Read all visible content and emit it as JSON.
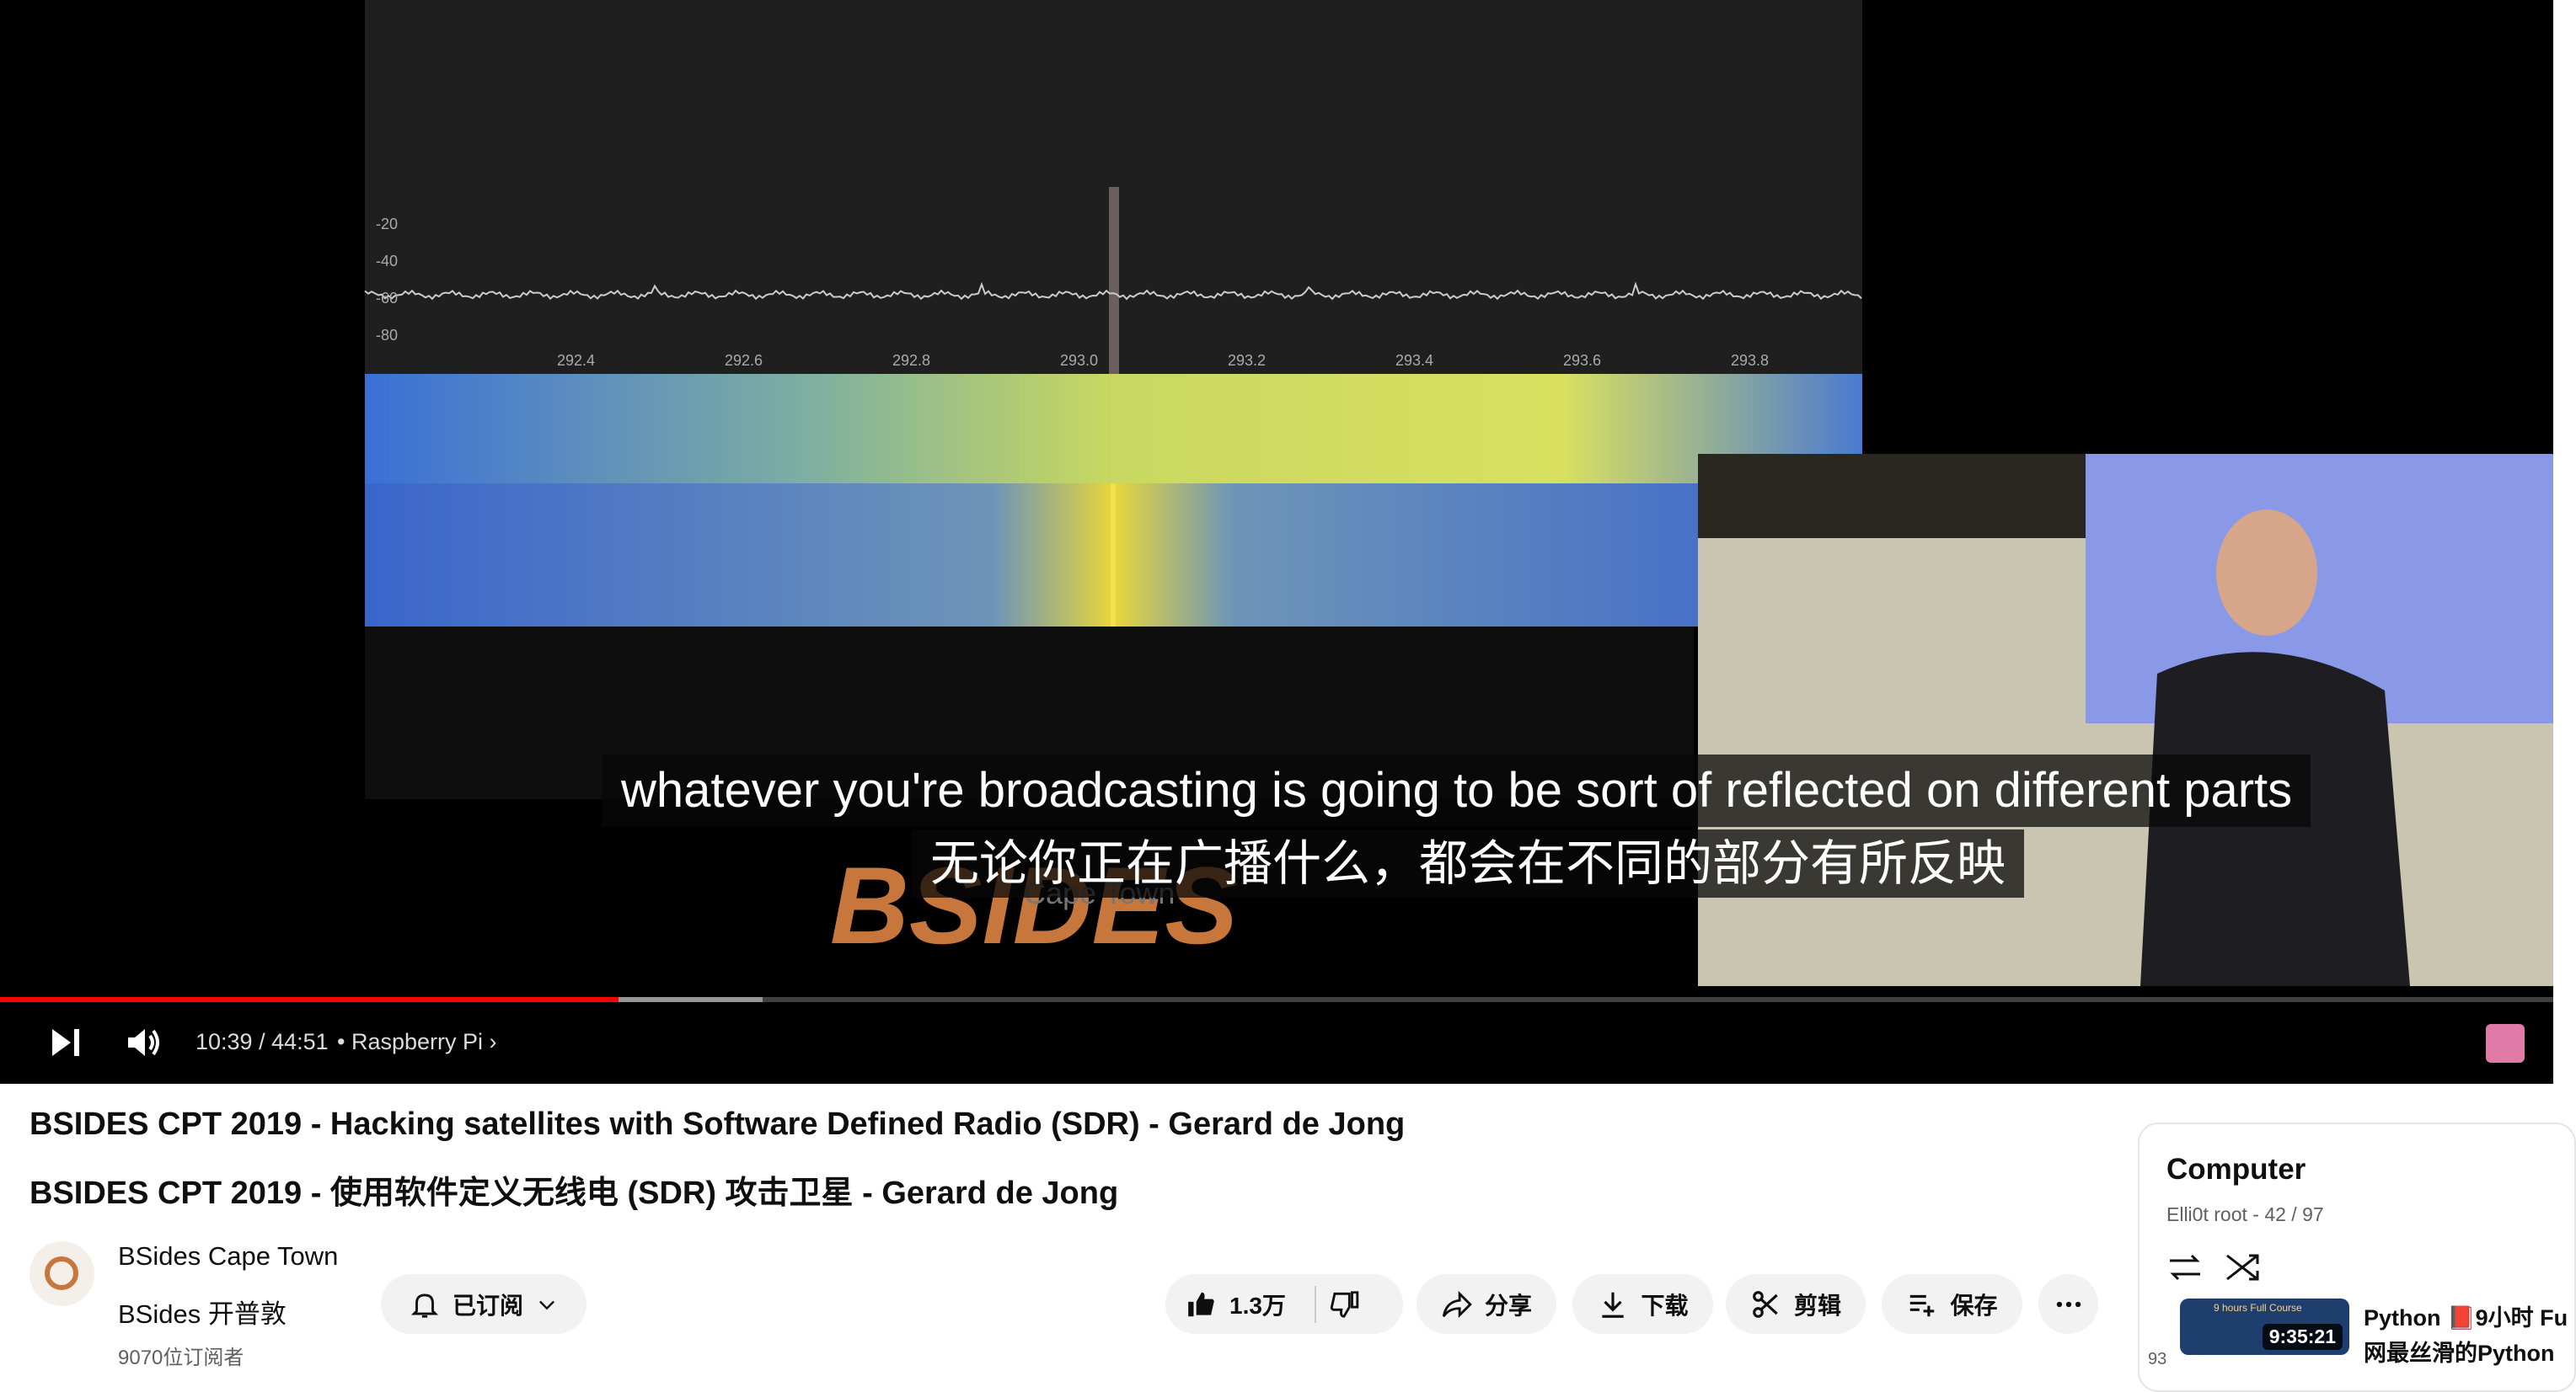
{
  "player": {
    "spectrum": {
      "y_labels": [
        "-20",
        "-40",
        "-60",
        "-80"
      ],
      "x_labels": [
        "292.4",
        "292.6",
        "292.8",
        "293.0",
        "293.2",
        "293.4",
        "293.6",
        "293.8"
      ]
    },
    "logo": {
      "brand": "BSIDES",
      "city": "Cape Town"
    },
    "subtitles": [
      "whatever you're broadcasting is going to be sort of reflected on different parts",
      "无论你正在广播什么，都会在不同的部分有所反映"
    ],
    "time": "10:39 / 44:51",
    "chapter": "Raspberry Pi"
  },
  "video": {
    "title": "BSIDES CPT 2019 - Hacking satellites with Software Defined Radio (SDR) - Gerard de Jong",
    "translated_title": "BSIDES CPT 2019 - 使用软件定义无线电 (SDR) 攻击卫星 - Gerard de Jong",
    "channel": {
      "name": "BSides Cape Town",
      "translated_name": "BSides 开普敦",
      "subscribers": "9070位订阅者"
    },
    "subscribe": "已订阅",
    "actions": {
      "likes": "1.3万",
      "share": "分享",
      "download": "下载",
      "clip": "剪辑",
      "save": "保存"
    }
  },
  "playlist": {
    "title": "Computer",
    "meta": "Elli0t root - 42 / 97",
    "item": {
      "index": "93",
      "thumb_caption": "9 hours Full Course",
      "duration": "9:35:21",
      "title_lines": [
        "Python 📕9小时 Fu",
        "网最丝滑的Python"
      ]
    }
  }
}
